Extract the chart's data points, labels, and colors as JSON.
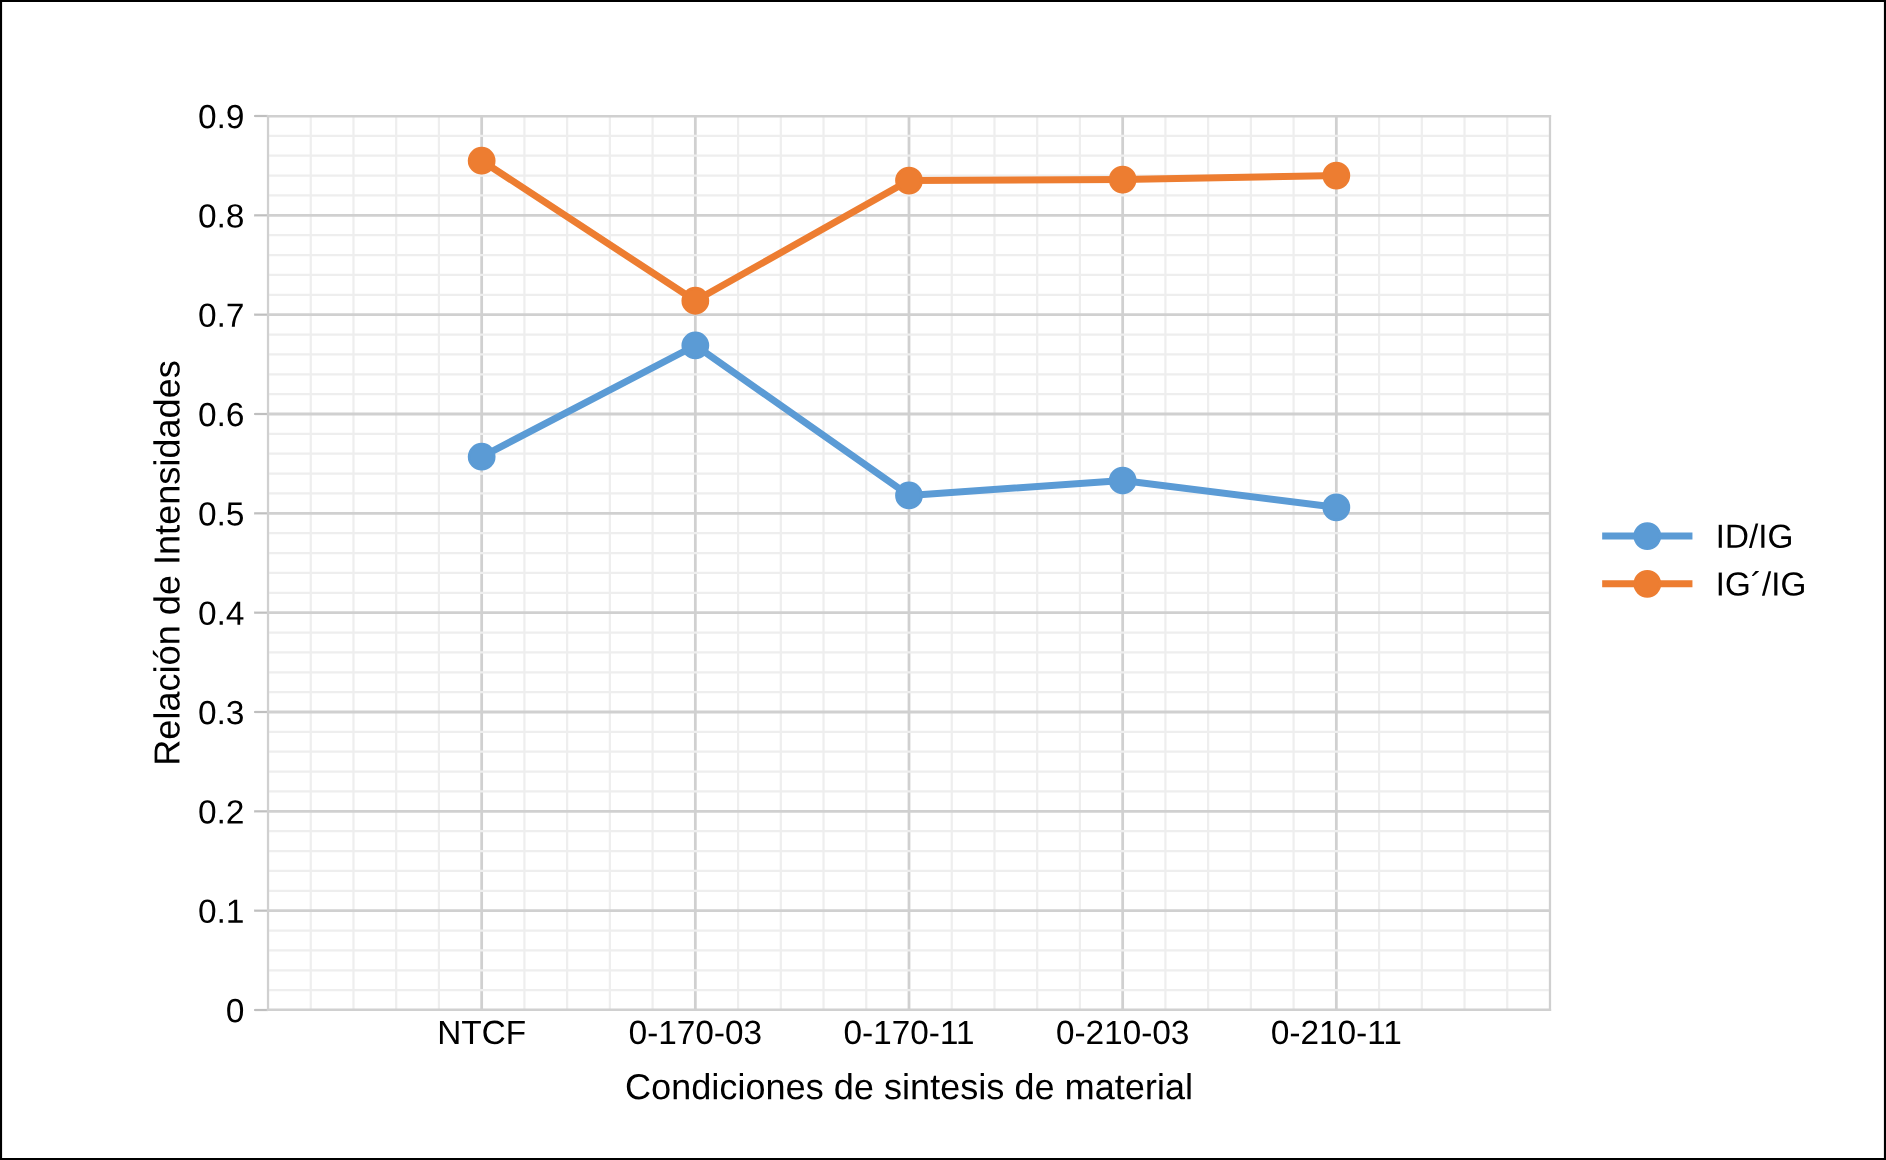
{
  "chart_data": {
    "type": "line",
    "xlabel": "Condiciones de sintesis de material",
    "ylabel": "Relación de Intensidades",
    "categories": [
      "NTCF",
      "0-170-03",
      "0-170-11",
      "0-210-03",
      "0-210-11"
    ],
    "series": [
      {
        "name": "ID/IG",
        "color": "#5b9bd5",
        "values": [
          0.557,
          0.669,
          0.518,
          0.533,
          0.506
        ]
      },
      {
        "name": "IG´/IG",
        "color": "#ed7d31",
        "values": [
          0.855,
          0.714,
          0.835,
          0.836,
          0.84
        ]
      }
    ],
    "ylim": [
      0,
      0.9
    ],
    "yticks": [
      0,
      0.1,
      0.2,
      0.3,
      0.4,
      0.5,
      0.6,
      0.7,
      0.8,
      0.9
    ],
    "grid": true,
    "legend": "right",
    "marker": "circle",
    "line_style": "solid"
  }
}
